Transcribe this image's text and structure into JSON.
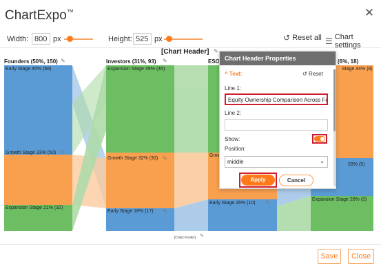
{
  "app": {
    "title": "ChartExpo",
    "trademark": "™"
  },
  "toolbar": {
    "width_label": "Width:",
    "width_value": "800",
    "width_unit": "px",
    "height_label": "Height:",
    "height_value": "525",
    "height_unit": "px",
    "reset_all": "Reset all",
    "chart_settings": "Chart settings"
  },
  "chart": {
    "header": "[Chart Header]",
    "footer": "[Chart Footer]",
    "nodes": [
      {
        "title": "Founders (50%, 150)",
        "segments": [
          {
            "label": "Early Stage 45% (68)",
            "color": "#5b9bd5"
          },
          {
            "label": "Growth Stage 33% (50)",
            "color": "#f9a04f"
          },
          {
            "label": "Expansion Stage 21% (32)",
            "color": "#6dbe63"
          }
        ]
      },
      {
        "title": "Investors (31%, 93)",
        "segments": [
          {
            "label": "Expansion Stage 49% (46)",
            "color": "#6dbe63"
          },
          {
            "label": "Growth Stage 32% (30)",
            "color": "#f9a04f"
          },
          {
            "label": "Early Stage 18% (17)",
            "color": "#5b9bd5"
          }
        ]
      },
      {
        "title": "ESO",
        "segments": [
          {
            "label": "Grow",
            "color": "#f9a04f"
          },
          {
            "label": "Early Stage 26% (10)",
            "color": "#5b9bd5"
          }
        ]
      },
      {
        "title": "(6%, 18)",
        "segments": [
          {
            "label": "Stage 44% (8)",
            "color": "#f9a04f"
          },
          {
            "label": "28% (5)",
            "color": "#5b9bd5"
          },
          {
            "label": "Expansion Stage 28% (5)",
            "color": "#6dbe63"
          }
        ]
      }
    ]
  },
  "panel": {
    "title": "Chart Header Properties",
    "section": "Text:",
    "reset": "Reset",
    "line1_label": "Line 1:",
    "line1_value": "Equity Ownership Comparison Across Fo",
    "line2_label": "Line 2:",
    "line2_value": "",
    "show_label": "Show:",
    "position_label": "Position:",
    "position_value": "middle",
    "apply": "Apply",
    "cancel": "Cancel"
  },
  "footer_buttons": {
    "save": "Save",
    "close": "Close"
  },
  "colors": {
    "accent": "#ff7a1a",
    "highlight": "#d11a2a",
    "blue": "#5b9bd5",
    "orange": "#f9a04f",
    "green": "#6dbe63"
  }
}
